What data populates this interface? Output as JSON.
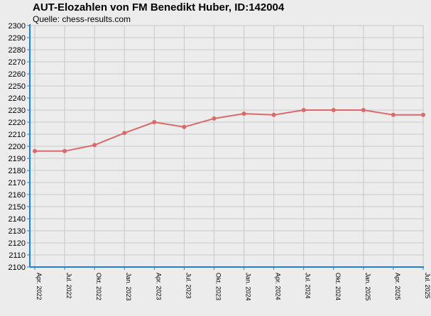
{
  "chart_data": {
    "type": "line",
    "title": "AUT-Elozahlen von FM Benedikt Huber, ID:142004",
    "subtitle": "Quelle: chess-results.com",
    "xlabel": "",
    "ylabel": "",
    "ylim": [
      2100,
      2300
    ],
    "y_tick_step": 10,
    "grid": true,
    "categories": [
      "Apr. 2022",
      "Jul. 2022",
      "Okt. 2022",
      "Jan. 2023",
      "Apr. 2023",
      "Jul. 2023",
      "Okt. 2023",
      "Jan. 2024",
      "Apr. 2024",
      "Jul. 2024",
      "Okt. 2024",
      "Jan. 2025",
      "Apr. 2025",
      "Jul. 2025"
    ],
    "series": [
      {
        "values": [
          2196,
          2196,
          2201,
          2211,
          2220,
          2216,
          2223,
          2227,
          2226,
          2230,
          2230,
          2230,
          2226,
          2226
        ]
      }
    ],
    "colors": {
      "line": "#d96a6a",
      "axis": "#1e7fe0",
      "grid": "#c8c8c8",
      "background": "#ececec"
    }
  }
}
